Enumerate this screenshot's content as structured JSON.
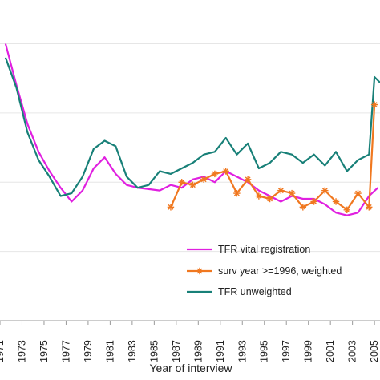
{
  "chart_data": {
    "type": "line",
    "xlabel": "Year of interview",
    "ylabel": "",
    "title": "",
    "x_tick_labels": [
      "1971",
      "1973",
      "1975",
      "1977",
      "1979",
      "1981",
      "1983",
      "1985",
      "1987",
      "1989",
      "1991",
      "1993",
      "1995",
      "1997",
      "1999",
      "2001",
      "2003",
      "2005"
    ],
    "xlim": [
      1971,
      2005.5
    ],
    "ylim": [
      0,
      110
    ],
    "y_gridlines": [
      0,
      25,
      50,
      75,
      100
    ],
    "legend_position": "lower-right",
    "series": [
      {
        "name": "TFR vital registration",
        "color": "#e020e0",
        "marker": "none",
        "points": [
          [
            1971.5,
            100
          ],
          [
            1972.5,
            85
          ],
          [
            1973.5,
            71
          ],
          [
            1974.5,
            61
          ],
          [
            1975.5,
            54
          ],
          [
            1976.5,
            48
          ],
          [
            1977.5,
            43
          ],
          [
            1978.5,
            47
          ],
          [
            1979.5,
            55
          ],
          [
            1980.5,
            59
          ],
          [
            1981.5,
            53
          ],
          [
            1982.5,
            49
          ],
          [
            1983.5,
            48
          ],
          [
            1984.5,
            47.5
          ],
          [
            1985.5,
            47
          ],
          [
            1986.5,
            49
          ],
          [
            1987.5,
            48
          ],
          [
            1988.5,
            51
          ],
          [
            1989.5,
            52
          ],
          [
            1990.5,
            50
          ],
          [
            1991.5,
            54
          ],
          [
            1992.5,
            52
          ],
          [
            1993.5,
            50
          ],
          [
            1994.5,
            47
          ],
          [
            1995.5,
            45
          ],
          [
            1996.5,
            43
          ],
          [
            1997.5,
            45
          ],
          [
            1998.5,
            44
          ],
          [
            1999.5,
            44
          ],
          [
            2000.5,
            42
          ],
          [
            2001.5,
            39
          ],
          [
            2002.5,
            38
          ],
          [
            2003.5,
            39
          ],
          [
            2004.5,
            45
          ],
          [
            2005.3,
            48
          ]
        ]
      },
      {
        "name": "surv year >=1996, weighted",
        "color": "#f07820",
        "marker": "asterisk",
        "points": [
          [
            1986.5,
            41
          ],
          [
            1987.5,
            50
          ],
          [
            1988.5,
            49
          ],
          [
            1989.5,
            51
          ],
          [
            1990.5,
            53
          ],
          [
            1991.5,
            54
          ],
          [
            1992.5,
            46
          ],
          [
            1993.5,
            51
          ],
          [
            1994.5,
            45
          ],
          [
            1995.5,
            44
          ],
          [
            1996.5,
            47
          ],
          [
            1997.5,
            46
          ],
          [
            1998.5,
            41
          ],
          [
            1999.5,
            43
          ],
          [
            2000.5,
            47
          ],
          [
            2001.5,
            43
          ],
          [
            2002.5,
            40
          ],
          [
            2003.5,
            46
          ],
          [
            2004.5,
            41
          ],
          [
            2005.0,
            78
          ]
        ]
      },
      {
        "name": "TFR unweighted",
        "color": "#188078",
        "marker": "none",
        "points": [
          [
            1971.5,
            95
          ],
          [
            1972.5,
            84
          ],
          [
            1973.5,
            68
          ],
          [
            1974.5,
            58
          ],
          [
            1975.5,
            52
          ],
          [
            1976.5,
            45
          ],
          [
            1977.5,
            46
          ],
          [
            1978.5,
            52
          ],
          [
            1979.5,
            62
          ],
          [
            1980.5,
            65
          ],
          [
            1981.5,
            63
          ],
          [
            1982.5,
            52
          ],
          [
            1983.5,
            48
          ],
          [
            1984.5,
            49
          ],
          [
            1985.5,
            54
          ],
          [
            1986.5,
            53
          ],
          [
            1987.5,
            55
          ],
          [
            1988.5,
            57
          ],
          [
            1989.5,
            60
          ],
          [
            1990.5,
            61
          ],
          [
            1991.5,
            66
          ],
          [
            1992.5,
            60
          ],
          [
            1993.5,
            64
          ],
          [
            1994.5,
            55
          ],
          [
            1995.5,
            57
          ],
          [
            1996.5,
            61
          ],
          [
            1997.5,
            60
          ],
          [
            1998.5,
            57
          ],
          [
            1999.5,
            60
          ],
          [
            2000.5,
            56
          ],
          [
            2001.5,
            61
          ],
          [
            2002.5,
            54
          ],
          [
            2003.5,
            58
          ],
          [
            2004.5,
            60
          ],
          [
            2005.0,
            88
          ],
          [
            2005.5,
            86
          ]
        ]
      }
    ]
  }
}
